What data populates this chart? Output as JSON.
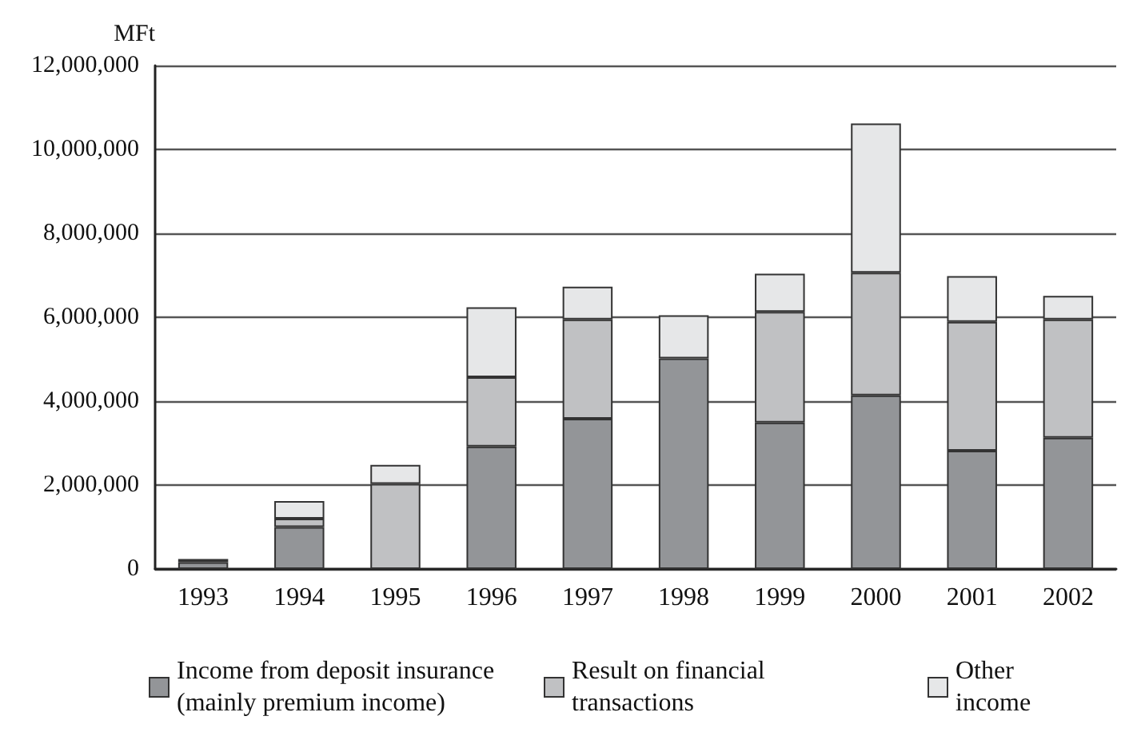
{
  "chart_data": {
    "type": "bar",
    "ylabel": "MFt",
    "categories": [
      "1993",
      "1994",
      "1995",
      "1996",
      "1997",
      "1998",
      "1999",
      "2000",
      "2001",
      "2002"
    ],
    "series": [
      {
        "name": "Income from deposit insurance (mainly premium income)",
        "color": "#939598",
        "values": [
          160000,
          1000000,
          null,
          2920000,
          3580000,
          5020000,
          3490000,
          4140000,
          2820000,
          3130000
        ]
      },
      {
        "name": "Result on financial transactions",
        "color": "#c0c1c3",
        "values": [
          80000,
          200000,
          2030000,
          1650000,
          2370000,
          null,
          2640000,
          2920000,
          3070000,
          2820000
        ]
      },
      {
        "name": "Other income",
        "color": "#e6e7e8",
        "values": [
          null,
          420000,
          450000,
          1670000,
          780000,
          1030000,
          910000,
          3560000,
          1090000,
          560000
        ]
      }
    ],
    "stacked": true,
    "ylim": [
      0,
      12000000
    ],
    "yticks": [
      0,
      {
        "value": 2000000,
        "label": "2,000,000"
      },
      {
        "value": 4000000,
        "label": "4,000,000"
      },
      {
        "value": 6000000,
        "label": "6,000,000"
      },
      {
        "value": 8000000,
        "label": "8,000,000"
      },
      {
        "value": 10000000,
        "label": "10,000,000"
      },
      {
        "value": 12000000,
        "label": "12,000,000"
      }
    ],
    "grid": "y",
    "legend": "bottom"
  }
}
